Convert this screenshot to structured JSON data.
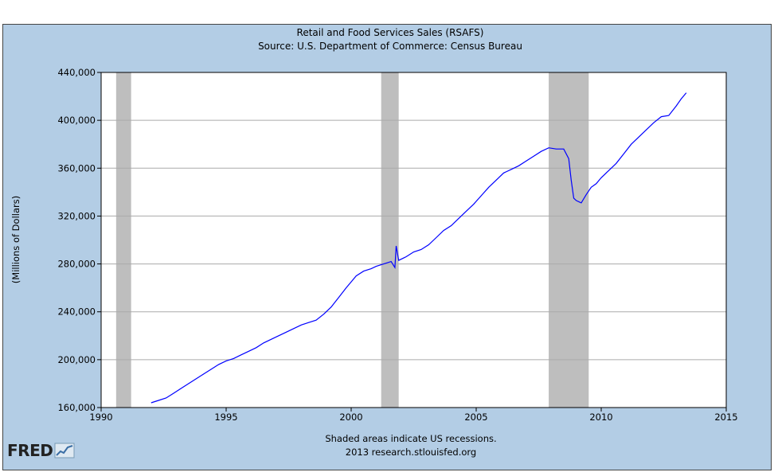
{
  "chart_data": {
    "type": "line",
    "title": "Retail and Food Services Sales (RSAFS)",
    "subtitle": "Source: U.S. Department of Commerce: Census Bureau",
    "ylabel": "(Millions of Dollars)",
    "xlabel": "",
    "xlim": [
      1990,
      2015
    ],
    "ylim": [
      160000,
      440000
    ],
    "x_ticks": [
      "1990",
      "1995",
      "2000",
      "2005",
      "2010",
      "2015"
    ],
    "y_ticks": [
      "160,000",
      "200,000",
      "240,000",
      "280,000",
      "320,000",
      "360,000",
      "400,000",
      "440,000"
    ],
    "grid": true,
    "line_color": "#0000ff",
    "recession_color": "#bebebe",
    "recessions": [
      [
        1990.6,
        1991.2
      ],
      [
        2001.2,
        2001.9
      ],
      [
        2007.9,
        2009.5
      ]
    ],
    "series": [
      {
        "x": [
          1992.0,
          1992.3,
          1992.6,
          1992.9,
          1993.2,
          1993.5,
          1993.8,
          1994.1,
          1994.4,
          1994.7,
          1995.0,
          1995.3,
          1995.6,
          1995.9,
          1996.2,
          1996.5,
          1996.8,
          1997.1,
          1997.4,
          1997.7,
          1998.0,
          1998.3,
          1998.6,
          1998.9,
          1999.2,
          1999.5,
          1999.8,
          2000.0,
          2000.2,
          2000.5,
          2000.8,
          2001.0,
          2001.3,
          2001.6,
          2001.75,
          2001.8,
          2001.9,
          2002.2,
          2002.5,
          2002.8,
          2003.1,
          2003.4,
          2003.7,
          2004.0,
          2004.3,
          2004.6,
          2004.9,
          2005.2,
          2005.5,
          2005.8,
          2006.1,
          2006.4,
          2006.7,
          2007.0,
          2007.3,
          2007.6,
          2007.9,
          2008.2,
          2008.5,
          2008.7,
          2008.8,
          2008.9,
          2009.0,
          2009.2,
          2009.4,
          2009.6,
          2009.8,
          2010.0,
          2010.3,
          2010.6,
          2010.9,
          2011.2,
          2011.5,
          2011.8,
          2012.1,
          2012.4,
          2012.7,
          2013.0,
          2013.2,
          2013.4
        ],
        "y": [
          164000,
          166000,
          168000,
          172000,
          176000,
          180000,
          184000,
          188000,
          192000,
          196000,
          199000,
          201000,
          204000,
          207000,
          210000,
          214000,
          217000,
          220000,
          223000,
          226000,
          229000,
          231000,
          233000,
          238000,
          244000,
          252000,
          260000,
          265000,
          270000,
          274000,
          276000,
          278000,
          280000,
          282000,
          277000,
          295000,
          283000,
          286000,
          290000,
          292000,
          296000,
          302000,
          308000,
          312000,
          318000,
          324000,
          330000,
          337000,
          344000,
          350000,
          356000,
          359000,
          362000,
          366000,
          370000,
          374000,
          377000,
          376000,
          376000,
          368000,
          350000,
          335000,
          333000,
          331000,
          338000,
          344000,
          347000,
          352000,
          358000,
          364000,
          372000,
          380000,
          386000,
          392000,
          398000,
          403000,
          404000,
          412000,
          418000,
          423000
        ]
      }
    ]
  },
  "footer": {
    "note": "Shaded areas indicate US recessions.",
    "source": "2013 research.stlouisfed.org",
    "logo_text": "FRED"
  }
}
